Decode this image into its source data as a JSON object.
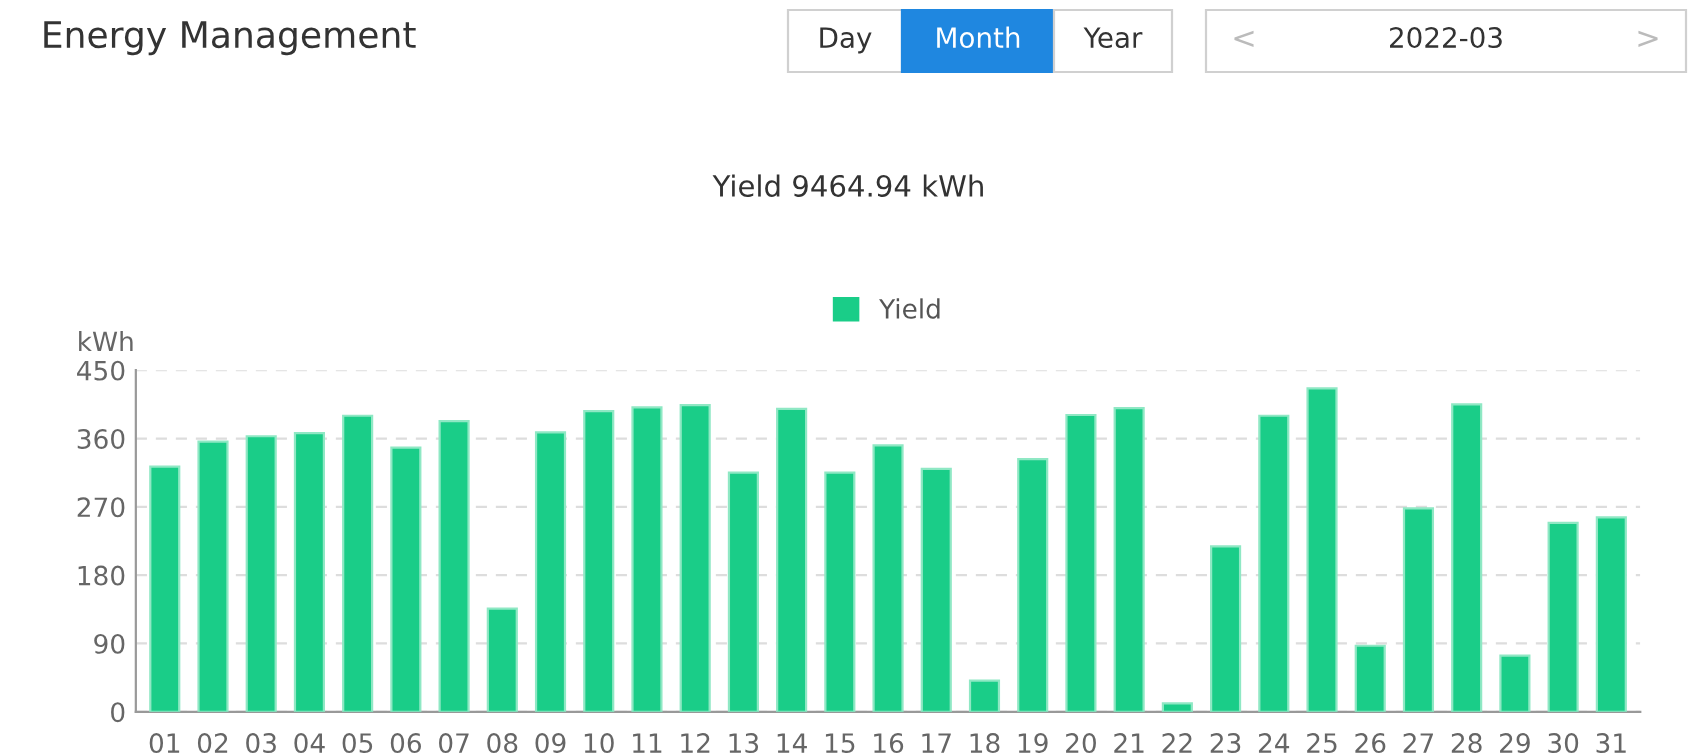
{
  "chart_data": {
    "type": "bar",
    "title": "Energy Management",
    "subtitle": "Yield 9464.94 kWh",
    "ylabel": "kWh",
    "annotations": [
      "Day",
      "Month",
      "Year",
      "<",
      "2022-03",
      ">"
    ],
    "categories": [
      "01",
      "02",
      "03",
      "04",
      "05",
      "06",
      "07",
      "08",
      "09",
      "10",
      "11",
      "12",
      "13",
      "14",
      "15",
      "16",
      "17",
      "18",
      "19",
      "20",
      "21",
      "22",
      "23",
      "24",
      "25",
      "26",
      "27",
      "28",
      "29",
      "30",
      "31"
    ],
    "series": [
      {
        "name": "Yield",
        "color": "#1acd88",
        "values": [
          323,
          356,
          363,
          367,
          390,
          348,
          383,
          136,
          368,
          396,
          401,
          404,
          315,
          399,
          315,
          351,
          320,
          41,
          333,
          391,
          400,
          11,
          218,
          390,
          426,
          87,
          268,
          405,
          74,
          249,
          256
        ]
      }
    ],
    "ylim": [
      0,
      450
    ],
    "yticks": [
      0,
      90,
      180,
      270,
      360,
      450
    ],
    "grid": "y",
    "legend": "top"
  }
}
